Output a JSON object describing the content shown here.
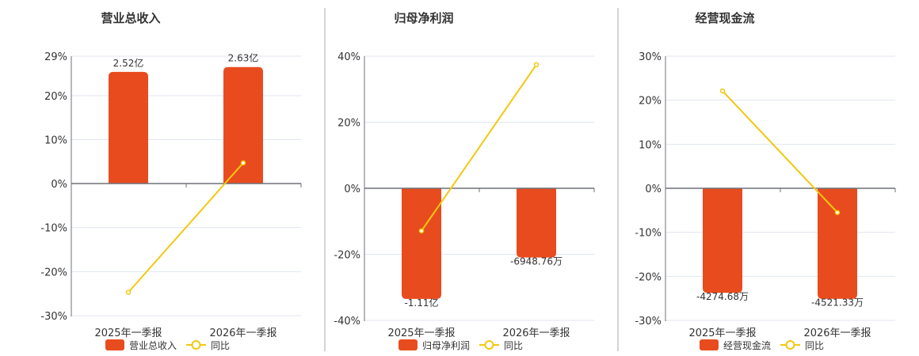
{
  "colors": {
    "bar": "#e84c1e",
    "line": "#f2c80f",
    "grid": "#e0e6f1",
    "axis": "#6e7079",
    "divider": "#aaaaaa"
  },
  "chart_data": [
    {
      "type": "bar+line",
      "title": "营业总收入",
      "categories": [
        "2025年一季报",
        "2026年一季报"
      ],
      "y_ticks": [
        "29%",
        "20%",
        "10%",
        "0%",
        "-10%",
        "-20%",
        "-30%"
      ],
      "ylim": [
        -30,
        29
      ],
      "bar_series": {
        "name": "营业总收入",
        "values_yi": [
          2.52,
          2.63
        ],
        "labels": [
          "2.52亿",
          "2.63亿"
        ]
      },
      "line_series": {
        "name": "同比",
        "values": [
          -24.7,
          4.7
        ]
      }
    },
    {
      "type": "bar+line",
      "title": "归母净利润",
      "categories": [
        "2025年一季报",
        "2026年一季报"
      ],
      "y_ticks": [
        "40%",
        "20%",
        "0%",
        "-20%",
        "-40%"
      ],
      "ylim": [
        -40,
        40
      ],
      "bar_series": {
        "name": "归母净利润",
        "values_yi": [
          -1.11,
          -0.694876
        ],
        "labels": [
          "-1.11亿",
          "-6948.76万"
        ]
      },
      "line_series": {
        "name": "同比",
        "values": [
          -12.9,
          37.4
        ]
      }
    },
    {
      "type": "bar+line",
      "title": "经营现金流",
      "categories": [
        "2025年一季报",
        "2026年一季报"
      ],
      "y_ticks": [
        "30%",
        "20%",
        "10%",
        "0%",
        "-10%",
        "-20%",
        "-30%"
      ],
      "ylim": [
        -30,
        30
      ],
      "bar_series": {
        "name": "经营现金流",
        "values_yi": [
          -0.427468,
          -0.452133
        ],
        "labels": [
          "-4274.68万",
          "-4521.33万"
        ]
      },
      "line_series": {
        "name": "同比",
        "values": [
          22.1,
          -5.5
        ]
      }
    }
  ]
}
